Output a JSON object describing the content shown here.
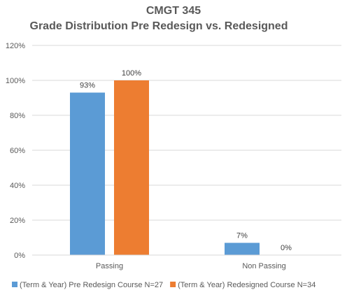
{
  "chart_data": {
    "type": "bar",
    "title": "CMGT 345",
    "subtitle": "Grade Distribution Pre Redesign vs. Redesigned",
    "xlabel": "",
    "ylabel": "",
    "categories": [
      "Passing",
      "Non Passing"
    ],
    "series": [
      {
        "name": "(Term & Year) Pre Redesign Course N=27",
        "values": [
          93,
          7
        ],
        "labels": [
          "93%",
          "7%"
        ],
        "color": "#5b9bd5"
      },
      {
        "name": "(Term & Year) Redesigned Course N=34",
        "values": [
          100,
          0
        ],
        "labels": [
          "100%",
          "0%"
        ],
        "color": "#ed7d31"
      }
    ],
    "ylim": [
      0,
      120
    ],
    "yticks": [
      0,
      20,
      40,
      60,
      80,
      100,
      120
    ],
    "ytick_labels": [
      "0%",
      "20%",
      "40%",
      "60%",
      "80%",
      "100%",
      "120%"
    ],
    "grid": true,
    "gridline_color": "#d9d9d9",
    "legend_position": "bottom"
  }
}
